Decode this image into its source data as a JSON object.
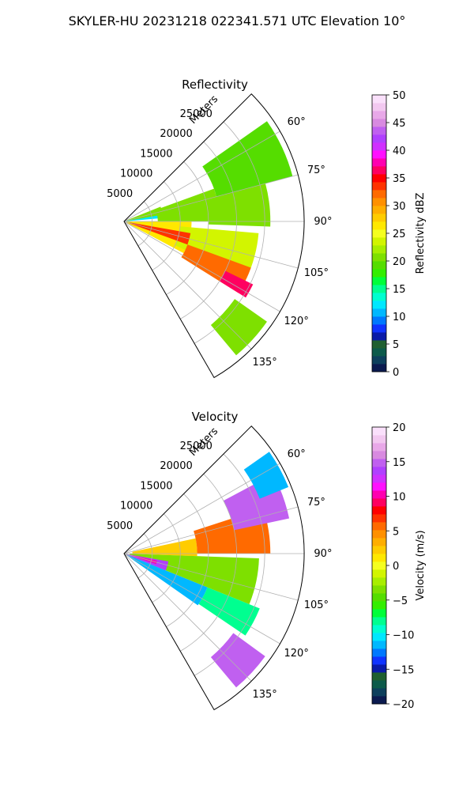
{
  "figure": {
    "title": "SKYLER-HU  20231218  022341.571 UTC Elevation 10°"
  },
  "chart_data": [
    {
      "type": "polar-sector",
      "title": "Reflectivity",
      "radial_label": "Meters",
      "radial_ticks": [
        "5000",
        "10000",
        "15000",
        "20000",
        "25000"
      ],
      "radial_values": [
        5000,
        10000,
        15000,
        20000,
        25000
      ],
      "r_max": 32000,
      "azimuth_range_deg": [
        45,
        150
      ],
      "azimuth_ticks": [
        "60°",
        "75°",
        "90°",
        "105°",
        "120°",
        "135°"
      ],
      "azimuth_values": [
        60,
        75,
        90,
        105,
        120,
        135
      ],
      "colorbar": {
        "label": "Reflectivity dBZ",
        "range": [
          0,
          50
        ],
        "tick_labels": [
          "0",
          "5",
          "10",
          "15",
          "20",
          "25",
          "30",
          "35",
          "40",
          "45",
          "50"
        ],
        "tick_values": [
          0,
          5,
          10,
          15,
          20,
          25,
          30,
          35,
          40,
          45,
          50
        ],
        "colors": [
          "#0b1a4f",
          "#0d3f5c",
          "#0c5a4a",
          "#1f5f30",
          "#0a1aa8",
          "#1033ff",
          "#0078ff",
          "#00b8ff",
          "#00e8ff",
          "#00ffd0",
          "#00ff90",
          "#00ff3a",
          "#33ee00",
          "#55dd00",
          "#7ee000",
          "#a8ee00",
          "#d2f500",
          "#f5ff20",
          "#ffe800",
          "#ffcc00",
          "#ffae00",
          "#ff9000",
          "#ff6a00",
          "#ff3300",
          "#ff0000",
          "#ff0060",
          "#ff00b0",
          "#ff10ff",
          "#d030ff",
          "#b040ff",
          "#c060f0",
          "#d88ae0",
          "#e8a8e8",
          "#f2c8f0",
          "#fae0fb"
        ]
      },
      "regions": [
        {
          "r0": 0,
          "r1": 12000,
          "a0": 75,
          "a1": 85,
          "value": 12
        },
        {
          "r0": 500,
          "r1": 7000,
          "a0": 68,
          "a1": 80,
          "value": 20
        },
        {
          "r0": 6000,
          "r1": 17000,
          "a0": 70,
          "a1": 90,
          "value": 20
        },
        {
          "r0": 17000,
          "r1": 31000,
          "a0": 55,
          "a1": 75,
          "value": 19
        },
        {
          "r0": 15000,
          "r1": 26000,
          "a0": 75,
          "a1": 92,
          "value": 21
        },
        {
          "r0": 500,
          "r1": 12000,
          "a0": 90,
          "a1": 118,
          "value": 27
        },
        {
          "r0": 10000,
          "r1": 24000,
          "a0": 95,
          "a1": 115,
          "value": 24
        },
        {
          "r0": 1000,
          "r1": 12000,
          "a0": 100,
          "a1": 110,
          "value": 33
        },
        {
          "r0": 12000,
          "r1": 24000,
          "a0": 110,
          "a1": 122,
          "value": 32
        },
        {
          "r0": 20000,
          "r1": 25500,
          "a0": 116,
          "a1": 122,
          "value": 36
        },
        {
          "r0": 24000,
          "r1": 31000,
          "a0": 125,
          "a1": 140,
          "value": 21
        }
      ]
    },
    {
      "type": "polar-sector",
      "title": "Velocity",
      "radial_label": "Meters",
      "radial_ticks": [
        "5000",
        "10000",
        "15000",
        "20000",
        "25000"
      ],
      "radial_values": [
        5000,
        10000,
        15000,
        20000,
        25000
      ],
      "r_max": 32000,
      "azimuth_range_deg": [
        45,
        150
      ],
      "azimuth_ticks": [
        "60°",
        "75°",
        "90°",
        "105°",
        "120°",
        "135°"
      ],
      "azimuth_values": [
        60,
        75,
        90,
        105,
        120,
        135
      ],
      "colorbar": {
        "label": "Velocity (m/s)",
        "range": [
          -20,
          20
        ],
        "tick_labels": [
          "−20",
          "−15",
          "−10",
          "−5",
          "0",
          "5",
          "10",
          "15",
          "20"
        ],
        "tick_values": [
          -20,
          -15,
          -10,
          -5,
          0,
          5,
          10,
          15,
          20
        ],
        "colors": [
          "#0b1a4f",
          "#0d3f5c",
          "#0c5a4a",
          "#1f5f30",
          "#0a1aa8",
          "#1033ff",
          "#0078ff",
          "#00b8ff",
          "#00e8ff",
          "#00ffd0",
          "#00ff90",
          "#00ff3a",
          "#33ee00",
          "#55dd00",
          "#7ee000",
          "#a8ee00",
          "#d2f500",
          "#f5ff20",
          "#ffe800",
          "#ffcc00",
          "#ffae00",
          "#ff9000",
          "#ff6a00",
          "#ff3300",
          "#ff0000",
          "#ff0060",
          "#ff00b0",
          "#ff10ff",
          "#d030ff",
          "#b040ff",
          "#c060f0",
          "#d88ae0",
          "#e8a8e8",
          "#f2c8f0",
          "#fae0fb"
        ]
      },
      "regions": [
        {
          "r0": 1500,
          "r1": 13000,
          "a0": 78,
          "a1": 92,
          "value": 2
        },
        {
          "r0": 13000,
          "r1": 26000,
          "a0": 72,
          "a1": 90,
          "value": 6
        },
        {
          "r0": 20000,
          "r1": 30000,
          "a0": 62,
          "a1": 78,
          "value": 15
        },
        {
          "r0": 26000,
          "r1": 31500,
          "a0": 55,
          "a1": 68,
          "value": -11
        },
        {
          "r0": 1000,
          "r1": 24000,
          "a0": 92,
          "a1": 112,
          "value": -3
        },
        {
          "r0": 500,
          "r1": 8000,
          "a0": 100,
          "a1": 112,
          "value": 14
        },
        {
          "r0": 1500,
          "r1": 6000,
          "a0": 102,
          "a1": 108,
          "value": 10
        },
        {
          "r0": 500,
          "r1": 16000,
          "a0": 112,
          "a1": 125,
          "value": -11
        },
        {
          "r0": 16000,
          "r1": 26000,
          "a0": 112,
          "a1": 124,
          "value": -8
        },
        {
          "r0": 24000,
          "r1": 31000,
          "a0": 126,
          "a1": 140,
          "value": 15
        }
      ]
    }
  ]
}
